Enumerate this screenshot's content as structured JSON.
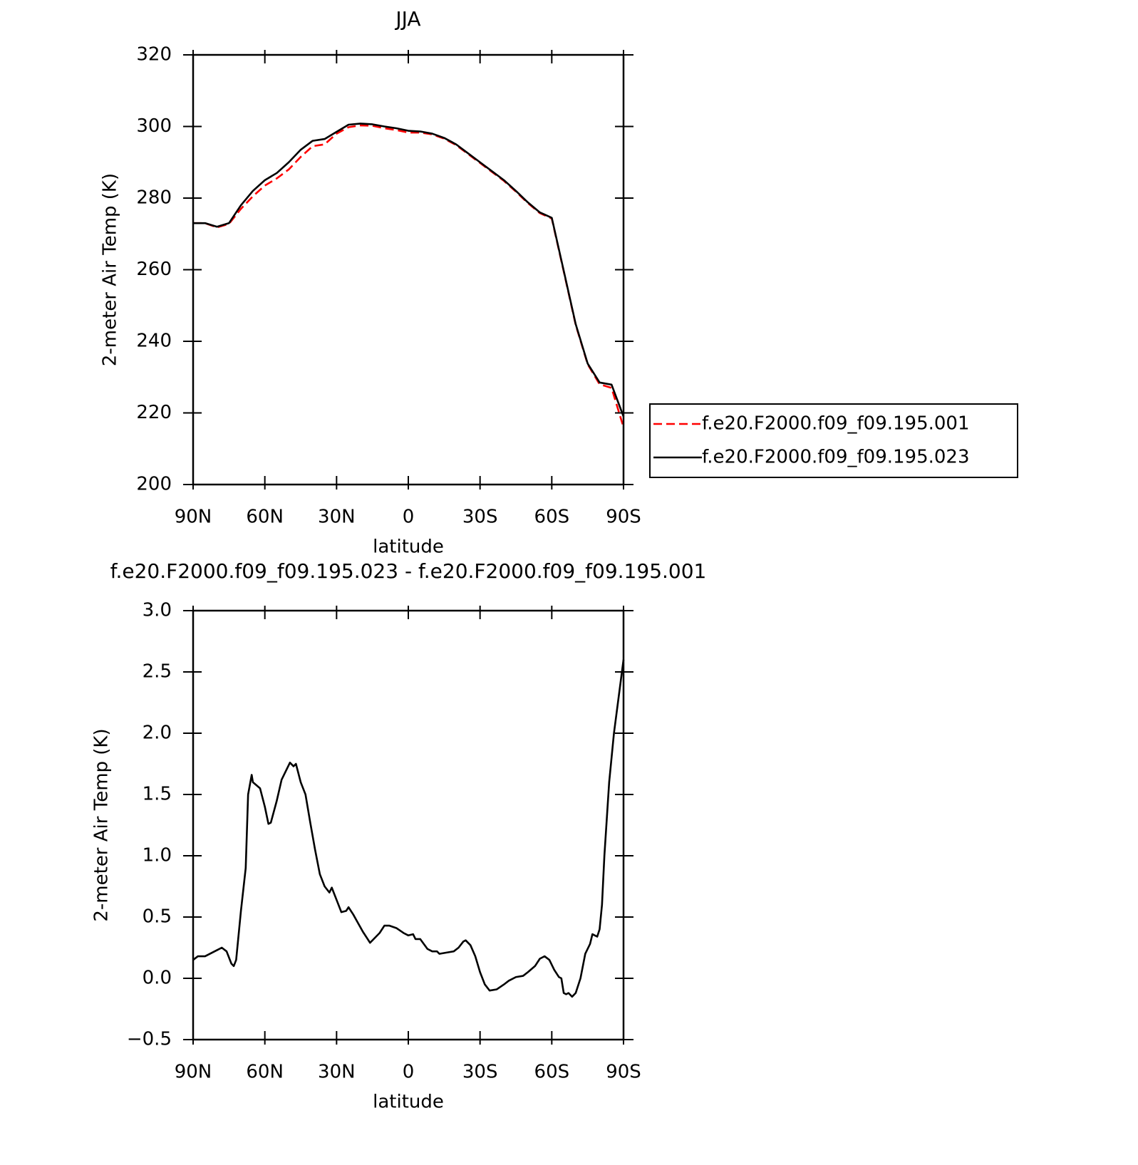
{
  "chart_data": [
    {
      "type": "line",
      "title": "JJA",
      "xlabel": "latitude",
      "ylabel": "2-meter Air Temp (K)",
      "xlim": [
        90,
        -90
      ],
      "ylim": [
        200,
        320
      ],
      "xticks": [
        {
          "value": 90,
          "label": "90N"
        },
        {
          "value": 60,
          "label": "60N"
        },
        {
          "value": 30,
          "label": "30N"
        },
        0,
        {
          "value": -30,
          "label": "30S"
        },
        {
          "value": -60,
          "label": "60S"
        },
        {
          "value": -90,
          "label": "90S"
        }
      ],
      "yticks": [
        200,
        220,
        240,
        260,
        280,
        300,
        320
      ],
      "legend": "outside-right",
      "x": [
        90,
        85,
        80,
        75,
        70,
        65,
        60,
        55,
        50,
        45,
        40,
        35,
        30,
        25,
        20,
        15,
        10,
        5,
        0,
        -5,
        -10,
        -15,
        -20,
        -25,
        -30,
        -35,
        -40,
        -45,
        -50,
        -55,
        -60,
        -65,
        -70,
        -75,
        -80,
        -85,
        -90
      ],
      "series": [
        {
          "name": "f.e20.F2000.f09_f09.195.001",
          "color": "#ff0000",
          "dash": true,
          "values": [
            273,
            273,
            271.8,
            272.8,
            277,
            280.5,
            283.5,
            285.5,
            288,
            291.5,
            294.5,
            295,
            298,
            299.8,
            300.3,
            300.2,
            299.5,
            299,
            298.3,
            298.3,
            297.8,
            296.6,
            294.8,
            292.3,
            289.8,
            287.3,
            284.8,
            281.8,
            278.6,
            275.8,
            274.3,
            259.5,
            244.6,
            233.6,
            228,
            227,
            216
          ]
        },
        {
          "name": "f.e20.F2000.f09_f09.195.023",
          "color": "#000000",
          "dash": false,
          "values": [
            273,
            273,
            272,
            273,
            278,
            282,
            285,
            287,
            290,
            293.5,
            296,
            296.5,
            298.5,
            300.5,
            300.8,
            300.6,
            300,
            299.5,
            298.8,
            298.6,
            298,
            296.8,
            295,
            292.5,
            290,
            287.5,
            285,
            282,
            278.8,
            276,
            274.5,
            259.7,
            244.8,
            233.8,
            228.5,
            227.9,
            219
          ]
        }
      ]
    },
    {
      "type": "line",
      "title": "f.e20.F2000.f09_f09.195.023 - f.e20.F2000.f09_f09.195.001",
      "xlabel": "latitude",
      "ylabel": "2-meter Air Temp (K)",
      "xlim": [
        90,
        -90
      ],
      "ylim": [
        -0.5,
        3.0
      ],
      "xticks": [
        {
          "value": 90,
          "label": "90N"
        },
        {
          "value": 60,
          "label": "60N"
        },
        {
          "value": 30,
          "label": "30N"
        },
        0,
        {
          "value": -30,
          "label": "30S"
        },
        {
          "value": -60,
          "label": "60S"
        },
        {
          "value": -90,
          "label": "90S"
        }
      ],
      "yticks": [
        {
          "value": -0.5,
          "label": "−0.5"
        },
        {
          "value": 0,
          "label": "0.0"
        },
        0.5,
        {
          "value": 1,
          "label": "1.0"
        },
        1.5,
        {
          "value": 2,
          "label": "2.0"
        },
        2.5,
        {
          "value": 3,
          "label": "3.0"
        }
      ],
      "x": [
        90,
        88,
        85,
        80,
        78,
        76,
        74,
        73,
        72,
        70,
        68,
        67,
        65.5,
        65,
        62,
        60,
        58.5,
        57.5,
        55,
        53,
        51,
        49.5,
        48,
        47,
        45,
        43,
        41,
        39,
        37,
        35,
        33,
        32,
        30,
        28,
        26,
        25,
        23,
        21,
        19,
        17,
        16,
        14,
        12,
        10,
        8,
        5,
        2,
        0,
        -2,
        -3,
        -5,
        -8,
        -10,
        -12,
        -13,
        -16,
        -19,
        -21,
        -23,
        -24,
        -26,
        -28,
        -30,
        -32,
        -34,
        -37,
        -40,
        -42,
        -45,
        -48,
        -50,
        -53,
        -55,
        -57,
        -59,
        -61,
        -63,
        -64,
        -65,
        -66,
        -67,
        -68.5,
        -70,
        -72,
        -74,
        -76,
        -77,
        -78,
        -79,
        -80,
        -81,
        -82,
        -84,
        -86,
        -88,
        -90
      ],
      "series": [
        {
          "color": "#000000",
          "dash": false,
          "values": [
            0.15,
            0.18,
            0.18,
            0.23,
            0.25,
            0.22,
            0.12,
            0.1,
            0.15,
            0.55,
            0.9,
            1.5,
            1.66,
            1.6,
            1.55,
            1.4,
            1.26,
            1.27,
            1.45,
            1.62,
            1.7,
            1.76,
            1.73,
            1.75,
            1.6,
            1.5,
            1.27,
            1.05,
            0.85,
            0.75,
            0.7,
            0.74,
            0.64,
            0.54,
            0.55,
            0.58,
            0.52,
            0.45,
            0.38,
            0.32,
            0.29,
            0.33,
            0.37,
            0.43,
            0.43,
            0.41,
            0.37,
            0.35,
            0.36,
            0.32,
            0.32,
            0.24,
            0.22,
            0.22,
            0.2,
            0.21,
            0.22,
            0.25,
            0.3,
            0.31,
            0.27,
            0.18,
            0.05,
            -0.05,
            -0.1,
            -0.09,
            -0.05,
            -0.02,
            0.01,
            0.02,
            0.05,
            0.1,
            0.16,
            0.18,
            0.15,
            0.07,
            0.01,
            0.0,
            -0.12,
            -0.13,
            -0.12,
            -0.15,
            -0.12,
            0.0,
            0.2,
            0.28,
            0.36,
            0.35,
            0.34,
            0.4,
            0.6,
            1.0,
            1.6,
            2.0,
            2.3,
            2.6
          ]
        }
      ]
    }
  ]
}
